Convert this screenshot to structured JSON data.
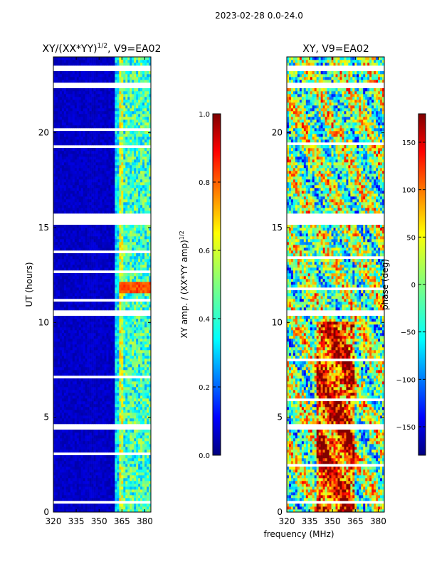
{
  "figure": {
    "suptitle": "2023-02-28 0.0-24.0",
    "shared_xlabel": "frequency (MHz)"
  },
  "chart_data": [
    {
      "type": "heatmap",
      "title": "XY/(XX*YY)1/2, V9=EA02",
      "title_main": "XY/(XX*YY)",
      "title_sup": "1/2",
      "title_tail": ", V9=EA02",
      "xlabel": "frequency (MHz)",
      "ylabel": "UT (hours)",
      "xlim": [
        320,
        384
      ],
      "ylim": [
        0,
        24
      ],
      "xticks": [
        320,
        335,
        350,
        365,
        380
      ],
      "yticks": [
        0,
        5,
        10,
        15,
        20
      ],
      "colorbar": {
        "label_main": "XY amp. / (XX*YY amp)",
        "label_sup": "1/2",
        "range": [
          0.0,
          1.0
        ],
        "ticks": [
          "0.0",
          "0.2",
          "0.4",
          "0.6",
          "0.8",
          "1.0"
        ],
        "tick_values": [
          0.0,
          0.2,
          0.4,
          0.6,
          0.8,
          1.0
        ],
        "colormap": "jet"
      },
      "flagged_hours": [
        [
          0.5,
          0.65
        ],
        [
          15.1,
          15.8
        ],
        [
          22.3,
          22.6
        ],
        [
          23.3,
          23.5
        ],
        [
          10.4,
          10.6
        ],
        [
          12.4,
          12.5
        ],
        [
          6.1,
          6.2
        ],
        [
          4.5,
          4.6
        ]
      ],
      "notes": "Amplitude mostly near 0 (blue) below ~361 MHz; elevated (0.3-0.7) in the 361-382 MHz band"
    },
    {
      "type": "heatmap",
      "title": "XY, V9=EA02",
      "xlabel": "frequency (MHz)",
      "ylabel": "",
      "xlim": [
        320,
        384
      ],
      "ylim": [
        0,
        24
      ],
      "xticks": [
        320,
        335,
        350,
        365,
        380
      ],
      "yticks": [
        0,
        5,
        10,
        15,
        20
      ],
      "colorbar": {
        "label": "phase (deg)",
        "range": [
          -180,
          180
        ],
        "ticks": [
          "150",
          "100",
          "50",
          "0",
          "−50",
          "−100",
          "−150"
        ],
        "tick_values": [
          150,
          100,
          50,
          0,
          -50,
          -100,
          -150
        ],
        "colormap": "jet"
      },
      "flagged_hours": [
        [
          0.5,
          0.65
        ],
        [
          15.1,
          15.8
        ],
        [
          22.3,
          22.6
        ],
        [
          23.3,
          23.5
        ],
        [
          10.4,
          10.6
        ],
        [
          12.4,
          12.5
        ],
        [
          6.1,
          6.2
        ],
        [
          4.5,
          4.6
        ]
      ],
      "notes": "Phase noisy across band; warm (positive) phases dominate 340-365 MHz during 2-10 UT"
    }
  ]
}
